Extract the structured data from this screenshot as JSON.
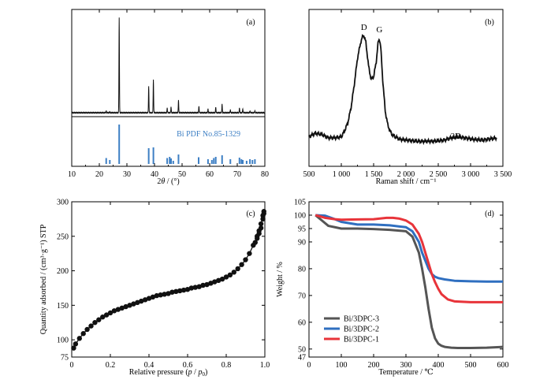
{
  "colors": {
    "black": "#111111",
    "blue": "#3d7fc4",
    "grey": "#555555",
    "red": "#e8343a",
    "mid_blue": "#2f6fc0"
  },
  "chart_data": [
    {
      "id": "a",
      "type": "line",
      "panel_label": "(a)",
      "xlabel": "2θ / (°)",
      "ylabel": "",
      "xlim": [
        10,
        80
      ],
      "xticks": [
        "10",
        "20",
        "30",
        "40",
        "50",
        "60",
        "70",
        "80"
      ],
      "reference_label": "Bi PDF No.85-1329",
      "peaks": [
        {
          "x": 22.5,
          "y": 2
        },
        {
          "x": 23.8,
          "y": 1
        },
        {
          "x": 27.2,
          "y": 100
        },
        {
          "x": 37.9,
          "y": 28
        },
        {
          "x": 39.6,
          "y": 35
        },
        {
          "x": 44.6,
          "y": 5
        },
        {
          "x": 46.0,
          "y": 6
        },
        {
          "x": 48.7,
          "y": 13
        },
        {
          "x": 56.1,
          "y": 7
        },
        {
          "x": 59.4,
          "y": 4
        },
        {
          "x": 62.2,
          "y": 6
        },
        {
          "x": 64.5,
          "y": 9
        },
        {
          "x": 67.5,
          "y": 3
        },
        {
          "x": 70.8,
          "y": 5
        },
        {
          "x": 72.0,
          "y": 4
        },
        {
          "x": 74.6,
          "y": 2
        },
        {
          "x": 76.4,
          "y": 2
        }
      ],
      "reference_bars": [
        {
          "x": 22.5,
          "h": 15
        },
        {
          "x": 23.8,
          "h": 10
        },
        {
          "x": 27.2,
          "h": 100
        },
        {
          "x": 37.9,
          "h": 40
        },
        {
          "x": 39.6,
          "h": 42
        },
        {
          "x": 44.6,
          "h": 15
        },
        {
          "x": 45.5,
          "h": 18
        },
        {
          "x": 46.0,
          "h": 14
        },
        {
          "x": 46.8,
          "h": 8
        },
        {
          "x": 48.7,
          "h": 24
        },
        {
          "x": 56.0,
          "h": 17
        },
        {
          "x": 59.4,
          "h": 12
        },
        {
          "x": 60.8,
          "h": 10
        },
        {
          "x": 61.5,
          "h": 15
        },
        {
          "x": 62.2,
          "h": 18
        },
        {
          "x": 64.5,
          "h": 22
        },
        {
          "x": 67.5,
          "h": 12
        },
        {
          "x": 70.8,
          "h": 16
        },
        {
          "x": 71.5,
          "h": 12
        },
        {
          "x": 72.0,
          "h": 10
        },
        {
          "x": 73.4,
          "h": 8
        },
        {
          "x": 74.6,
          "h": 12
        },
        {
          "x": 75.5,
          "h": 10
        },
        {
          "x": 76.4,
          "h": 12
        }
      ]
    },
    {
      "id": "b",
      "type": "line",
      "panel_label": "(b)",
      "xlabel": "Raman shift / cm⁻¹",
      "ylabel": "",
      "xlim": [
        500,
        3500
      ],
      "xticks": [
        "500",
        "1 000",
        "1 500",
        "2 000",
        "2 500",
        "3 000",
        "3 500"
      ],
      "peak_labels": [
        "D",
        "G",
        "2D"
      ],
      "series": [
        {
          "x": [
            500,
            600,
            700,
            800,
            900,
            1000,
            1050,
            1100,
            1150,
            1200,
            1250,
            1300,
            1330,
            1350,
            1380,
            1420,
            1460,
            1500,
            1540,
            1570,
            1590,
            1610,
            1640,
            1680,
            1720,
            1760,
            1800,
            1900,
            2000,
            2200,
            2400,
            2600,
            2700,
            2800,
            2900,
            3000,
            3200,
            3400
          ],
          "y": [
            10,
            13,
            12,
            9,
            9,
            10,
            15,
            22,
            35,
            55,
            78,
            92,
            97,
            98,
            92,
            72,
            60,
            62,
            75,
            92,
            95,
            88,
            60,
            32,
            20,
            14,
            11,
            8,
            7,
            6,
            6,
            7,
            9,
            10,
            9,
            8,
            7,
            9
          ]
        }
      ]
    },
    {
      "id": "c",
      "type": "line",
      "panel_label": "(c)",
      "xlabel": "Relative pressure (p / p0)",
      "ylabel": "Quantity adsorbed / (cm³·g⁻¹) STP",
      "xlim": [
        0,
        1.0
      ],
      "ylim": [
        75,
        300
      ],
      "xticks": [
        "0",
        "0.2",
        "0.4",
        "0.6",
        "0.8",
        "1.0"
      ],
      "yticks": [
        "75",
        "100",
        "150",
        "200",
        "250",
        "300"
      ],
      "series": [
        {
          "name": "",
          "x": [
            0.01,
            0.02,
            0.04,
            0.06,
            0.08,
            0.1,
            0.12,
            0.14,
            0.16,
            0.18,
            0.2,
            0.22,
            0.24,
            0.26,
            0.28,
            0.3,
            0.32,
            0.34,
            0.36,
            0.38,
            0.4,
            0.42,
            0.44,
            0.46,
            0.48,
            0.5,
            0.52,
            0.54,
            0.56,
            0.58,
            0.6,
            0.62,
            0.64,
            0.66,
            0.68,
            0.7,
            0.72,
            0.74,
            0.76,
            0.78,
            0.8,
            0.82,
            0.84,
            0.86,
            0.88,
            0.9,
            0.92,
            0.94,
            0.96,
            0.97,
            0.98,
            0.99,
            0.995
          ],
          "y": [
            88,
            94,
            102,
            109,
            115,
            120,
            125,
            129,
            133,
            136,
            139,
            142,
            144,
            146,
            148,
            150,
            152,
            154,
            156,
            158,
            160,
            162,
            164,
            165,
            166,
            167,
            169,
            170,
            171,
            172,
            173,
            175,
            176,
            177,
            179,
            180,
            182,
            184,
            186,
            188,
            191,
            194,
            198,
            203,
            209,
            216,
            225,
            237,
            250,
            258,
            268,
            280,
            286
          ]
        }
      ]
    },
    {
      "id": "d",
      "type": "line",
      "panel_label": "(d)",
      "xlabel": "Temperature / ℃",
      "ylabel": "Weight / %",
      "xlim": [
        0,
        600
      ],
      "ylim": [
        47,
        105
      ],
      "xticks": [
        "0",
        "100",
        "200",
        "300",
        "400",
        "500",
        "600"
      ],
      "yticks": [
        "47",
        "50",
        "60",
        "70",
        "80",
        "90",
        "95",
        "100",
        "105"
      ],
      "legend_position": "bottom-left",
      "series": [
        {
          "name": "Bi/3DPC-3",
          "color": "#555555",
          "x": [
            20,
            40,
            60,
            80,
            100,
            150,
            200,
            250,
            300,
            320,
            340,
            350,
            360,
            370,
            380,
            390,
            400,
            410,
            420,
            440,
            460,
            500,
            550,
            600
          ],
          "y": [
            100,
            98,
            96,
            95.5,
            95,
            95,
            94.8,
            94.5,
            94,
            92,
            86,
            80,
            73,
            65,
            58,
            54,
            52,
            51.2,
            50.8,
            50.5,
            50.4,
            50.4,
            50.5,
            50.8
          ]
        },
        {
          "name": "Bi/3DPC-2",
          "color": "#2f6fc0",
          "x": [
            20,
            50,
            80,
            100,
            150,
            200,
            250,
            300,
            320,
            340,
            350,
            360,
            370,
            380,
            390,
            400,
            420,
            450,
            500,
            550,
            600
          ],
          "y": [
            100,
            99.8,
            98.5,
            97.5,
            96.5,
            96.5,
            96.2,
            95.5,
            94,
            90,
            86,
            83,
            80,
            78,
            77,
            76.5,
            76,
            75.5,
            75.3,
            75.2,
            75.2
          ]
        },
        {
          "name": "Bi/3DPC-1",
          "color": "#e8343a",
          "x": [
            20,
            50,
            80,
            100,
            150,
            200,
            240,
            260,
            280,
            300,
            320,
            340,
            350,
            360,
            370,
            380,
            390,
            400,
            410,
            430,
            450,
            500,
            550,
            600
          ],
          "y": [
            100,
            99,
            98.5,
            98.3,
            98.4,
            98.5,
            99,
            99,
            98.7,
            98,
            96.5,
            93,
            90,
            86,
            82,
            78,
            75,
            72.5,
            70.5,
            68.5,
            67.8,
            67.5,
            67.5,
            67.5
          ]
        }
      ]
    }
  ]
}
